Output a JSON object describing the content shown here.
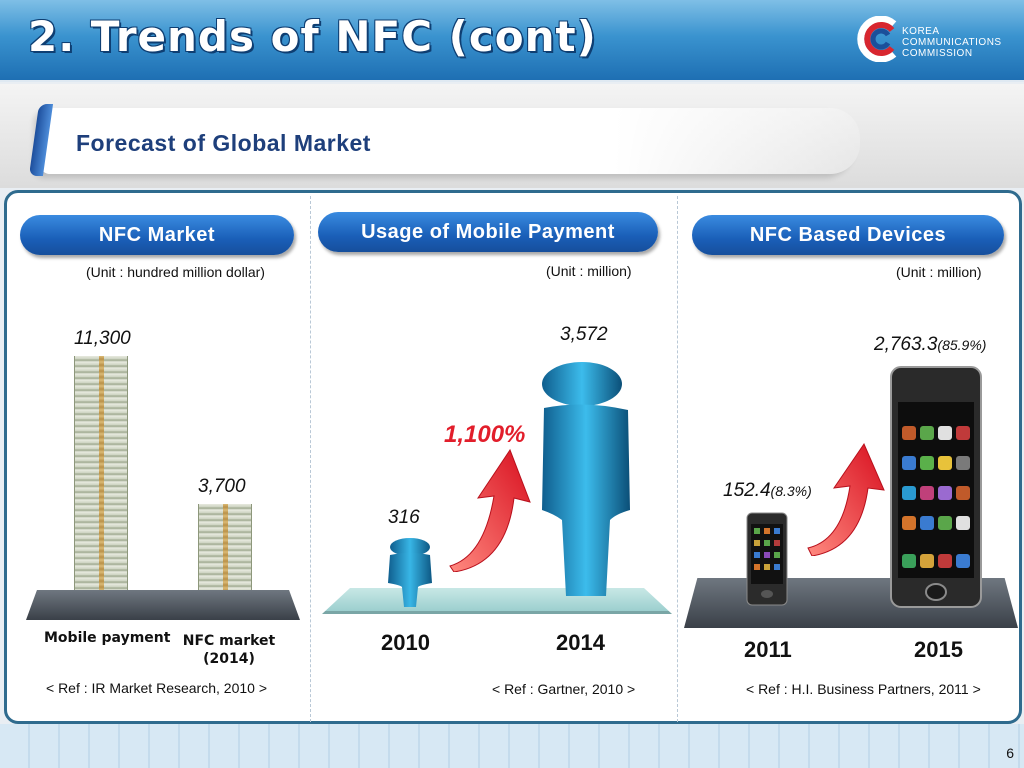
{
  "header": {
    "title": "2. Trends of NFC (cont)",
    "logo_lines": [
      "KOREA",
      "COMMUNICATIONS",
      "COMMISSION"
    ]
  },
  "subtitle": "Forecast of Global Market",
  "panels": {
    "nfc_market": {
      "title": "NFC Market",
      "unit": "(Unit : hundred million dollar)",
      "value_mobile": "11,300",
      "value_nfc": "3,700",
      "label_mobile": "Mobile payment",
      "label_nfc_line1": "NFC market",
      "label_nfc_line2": "(2014)",
      "ref": "< Ref : IR Market Research, 2010  >"
    },
    "mobile_payment": {
      "title": "Usage of Mobile Payment",
      "unit": "(Unit : million)",
      "value_2010": "316",
      "value_2014": "3,572",
      "growth": "1,100%",
      "year_2010": "2010",
      "year_2014": "2014",
      "ref": "< Ref : Gartner, 2010  >"
    },
    "nfc_devices": {
      "title": "NFC Based Devices",
      "unit": "(Unit : million)",
      "value_2011": "152.4",
      "pct_2011": "(8.3%)",
      "value_2015": "2,763.3",
      "pct_2015": "(85.9%)",
      "year_2011": "2011",
      "year_2015": "2015",
      "ref": "< Ref : H.I. Business Partners, 2011  >"
    }
  },
  "page_number": "6",
  "colors": {
    "header_blue": "#1e6fb3",
    "pill_blue": "#1a5fb8",
    "accent_red": "#e21e2b",
    "figure_teal": "#1f8fc0"
  }
}
